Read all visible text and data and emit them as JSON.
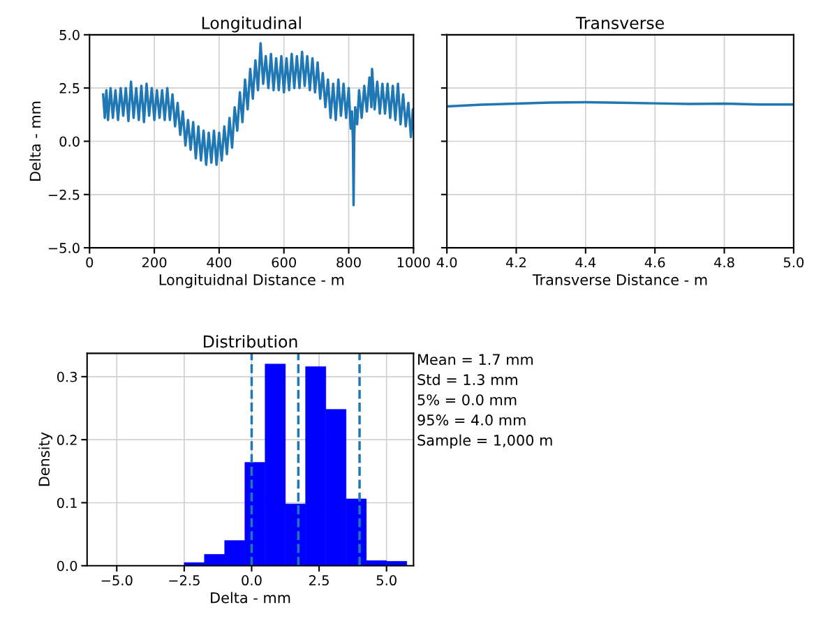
{
  "chart_data": [
    {
      "type": "line",
      "title": "Longitudinal",
      "xlabel": "Longituidnal Distance - m",
      "ylabel": "Delta - mm",
      "grid": true,
      "xlim": [
        0,
        1000
      ],
      "xticks": [
        0,
        200,
        400,
        600,
        800,
        1000
      ],
      "ylim": [
        -5,
        5
      ],
      "yticks": [
        {
          "value": -5,
          "label": "−5.0"
        },
        {
          "value": -2.5,
          "label": "−2.5"
        },
        {
          "value": 0,
          "label": "0.0"
        },
        {
          "value": 2.5,
          "label": "2.5"
        },
        {
          "value": 5,
          "label": "5.0"
        }
      ],
      "series": [
        {
          "color": "#1f77b4",
          "x": [
            42,
            47,
            52,
            57,
            65,
            72,
            80,
            88,
            96,
            104,
            112,
            120,
            128,
            136,
            144,
            152,
            160,
            168,
            176,
            184,
            192,
            200,
            208,
            216,
            224,
            232,
            240,
            248,
            256,
            264,
            272,
            280,
            288,
            296,
            304,
            312,
            320,
            328,
            336,
            344,
            352,
            360,
            368,
            376,
            384,
            392,
            400,
            408,
            416,
            424,
            432,
            440,
            448,
            456,
            464,
            472,
            480,
            488,
            496,
            504,
            512,
            520,
            528,
            536,
            544,
            552,
            560,
            568,
            576,
            584,
            592,
            600,
            608,
            616,
            624,
            632,
            640,
            648,
            656,
            664,
            672,
            680,
            688,
            696,
            704,
            712,
            720,
            728,
            736,
            744,
            752,
            760,
            768,
            776,
            784,
            792,
            800,
            806,
            810,
            813,
            815,
            817,
            820,
            826,
            832,
            840,
            848,
            856,
            864,
            870,
            872,
            880,
            888,
            896,
            904,
            912,
            920,
            928,
            936,
            944,
            952,
            960,
            968,
            976,
            984,
            992,
            998,
            1000
          ],
          "values": [
            2.2,
            1.1,
            2.4,
            1.0,
            2.5,
            1.1,
            2.4,
            1.0,
            2.5,
            1.2,
            2.5,
            0.95,
            2.8,
            1.1,
            2.5,
            1.0,
            2.6,
            0.9,
            2.7,
            1.2,
            2.5,
            1.0,
            2.4,
            1.1,
            2.4,
            1.0,
            2.5,
            1.0,
            2.2,
            0.7,
            1.8,
            0.3,
            1.4,
            -0.2,
            1.0,
            -0.4,
            0.9,
            -0.8,
            0.7,
            -0.9,
            0.5,
            -1.1,
            0.4,
            -1.0,
            0.5,
            -1.1,
            0.4,
            -0.9,
            0.7,
            -0.6,
            1.1,
            -0.3,
            1.6,
            0.5,
            2.3,
            0.9,
            2.9,
            1.5,
            3.4,
            2.0,
            3.8,
            2.4,
            4.6,
            2.7,
            4.0,
            2.5,
            4.1,
            2.4,
            3.9,
            2.4,
            4.0,
            2.3,
            3.9,
            2.4,
            4.1,
            2.5,
            4.0,
            2.5,
            4.2,
            2.6,
            4.0,
            2.4,
            3.9,
            2.3,
            3.7,
            2.0,
            3.2,
            1.6,
            2.9,
            1.1,
            2.7,
            1.0,
            2.9,
            1.2,
            2.7,
            1.1,
            2.5,
            0.6,
            1.4,
            0.0,
            -3.0,
            0.2,
            1.6,
            0.8,
            2.4,
            1.1,
            2.6,
            1.4,
            3.0,
            1.6,
            3.4,
            1.5,
            2.8,
            1.3,
            2.7,
            1.3,
            2.7,
            1.1,
            2.6,
            1.0,
            2.7,
            0.8,
            2.2,
            0.7,
            1.8,
            0.2,
            1.5,
            0.6
          ]
        }
      ]
    },
    {
      "type": "line",
      "title": "Transverse",
      "xlabel": "Transverse Distance - m",
      "grid": true,
      "tick_labels": "x",
      "xlim": [
        4.0,
        5.0
      ],
      "xticks": [
        {
          "value": 4.0,
          "label": "4.0"
        },
        {
          "value": 4.2,
          "label": "4.2"
        },
        {
          "value": 4.4,
          "label": "4.4"
        },
        {
          "value": 4.6,
          "label": "4.6"
        },
        {
          "value": 4.8,
          "label": "4.8"
        },
        {
          "value": 5.0,
          "label": "5.0"
        }
      ],
      "ylim": [
        -5,
        5
      ],
      "yticks": [
        -5,
        -2.5,
        0,
        2.5,
        5
      ],
      "series": [
        {
          "color": "#1f77b4",
          "x": [
            4.0,
            4.1,
            4.2,
            4.3,
            4.4,
            4.5,
            4.6,
            4.7,
            4.8,
            4.9,
            5.0
          ],
          "values": [
            1.64,
            1.72,
            1.77,
            1.82,
            1.83,
            1.81,
            1.78,
            1.75,
            1.77,
            1.73,
            1.73
          ]
        }
      ]
    },
    {
      "type": "histogram",
      "title": "Distribution",
      "xlabel": "Delta - mm",
      "ylabel": "Density",
      "grid": true,
      "color": "#0000ff",
      "bins": [
        -2.5,
        -1.75,
        -1.0,
        -0.25,
        0.5,
        1.25,
        2.0,
        2.75,
        3.5,
        4.25,
        5.0,
        5.75
      ],
      "values": [
        0.005,
        0.018,
        0.04,
        0.164,
        0.32,
        0.098,
        0.316,
        0.248,
        0.106,
        0.008,
        0.007
      ],
      "xlim": [
        -6.1,
        6.0
      ],
      "xticks": [
        {
          "value": -5,
          "label": "−5.0"
        },
        {
          "value": -2.5,
          "label": "−2.5"
        },
        {
          "value": 0,
          "label": "0.0"
        },
        {
          "value": 2.5,
          "label": "2.5"
        },
        {
          "value": 5,
          "label": "5.0"
        }
      ],
      "ylim": [
        0,
        0.337
      ],
      "yticks": [
        {
          "value": 0,
          "label": "0.0"
        },
        {
          "value": 0.1,
          "label": "0.1"
        },
        {
          "value": 0.2,
          "label": "0.2"
        },
        {
          "value": 0.3,
          "label": "0.3"
        }
      ],
      "ref_lines": [
        {
          "axis": "x",
          "value": 0.0,
          "color": "#1f77b4",
          "line_style": "dashed"
        },
        {
          "axis": "x",
          "value": 1.73,
          "color": "#1f77b4",
          "line_style": "dashed"
        },
        {
          "axis": "x",
          "value": 4.0,
          "color": "#1f77b4",
          "line_style": "dashed"
        }
      ],
      "annotations": [
        "Mean = 1.7 mm",
        "Std = 1.3 mm",
        "5% = 0.0 mm",
        "95% = 4.0 mm",
        "Sample = 1,000 m"
      ]
    }
  ]
}
